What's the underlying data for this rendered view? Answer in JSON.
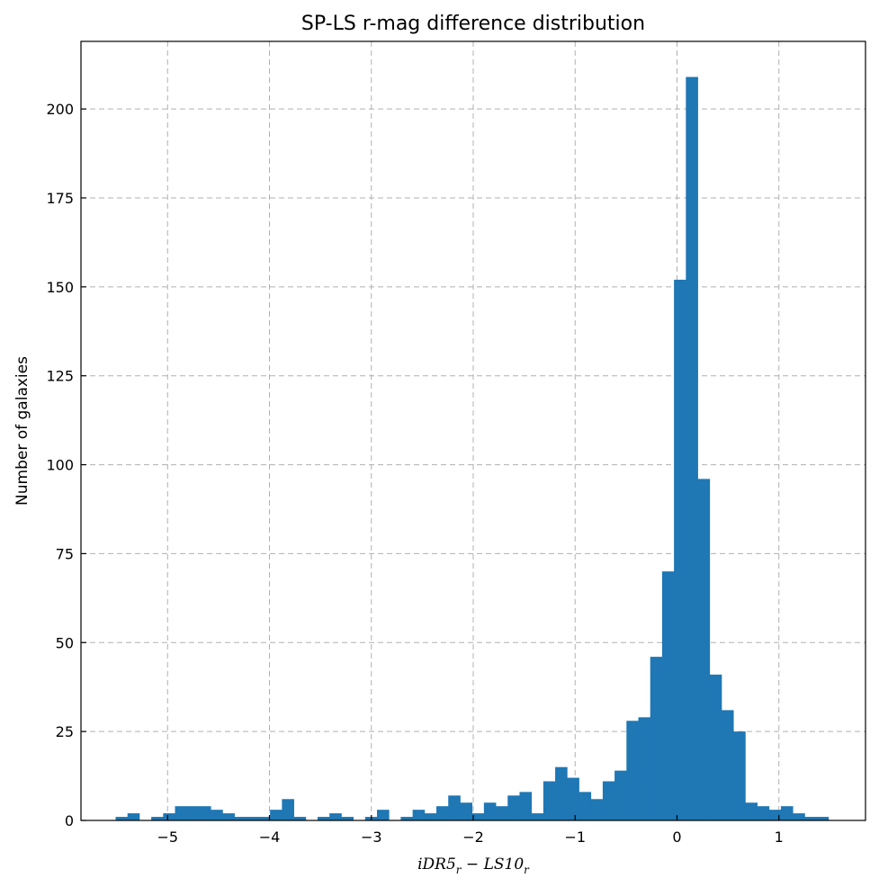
{
  "chart_data": {
    "type": "bar",
    "subtype": "histogram",
    "title": "SP-LS r-mag difference distribution",
    "xlabel_parts": {
      "main1": "iDR5",
      "sub1": "r",
      "op": " − ",
      "main2": "LS10",
      "sub2": "r"
    },
    "ylabel": "Number of galaxies",
    "xlim": [
      -5.85,
      1.85
    ],
    "ylim": [
      0,
      219
    ],
    "xticks": [
      -5,
      -4,
      -3,
      -2,
      -1,
      0,
      1
    ],
    "xtick_labels": [
      "−5",
      "−4",
      "−3",
      "−2",
      "−1",
      "0",
      "1"
    ],
    "yticks": [
      0,
      25,
      50,
      75,
      100,
      125,
      150,
      175,
      200
    ],
    "ytick_labels": [
      "0",
      "25",
      "50",
      "75",
      "100",
      "125",
      "150",
      "175",
      "200"
    ],
    "grid": true,
    "bin_start": -5.51,
    "bin_width": 0.1166,
    "values": [
      1,
      2,
      0,
      1,
      2,
      4,
      4,
      4,
      3,
      2,
      1,
      1,
      1,
      3,
      6,
      1,
      0,
      1,
      2,
      1,
      0,
      1,
      3,
      0,
      1,
      3,
      2,
      4,
      7,
      5,
      2,
      5,
      4,
      7,
      8,
      2,
      11,
      15,
      12,
      8,
      6,
      11,
      14,
      28,
      29,
      46,
      70,
      152,
      209,
      96,
      41,
      31,
      25,
      5,
      4,
      3,
      4,
      2,
      1,
      1
    ],
    "color": "#1f77b4"
  }
}
